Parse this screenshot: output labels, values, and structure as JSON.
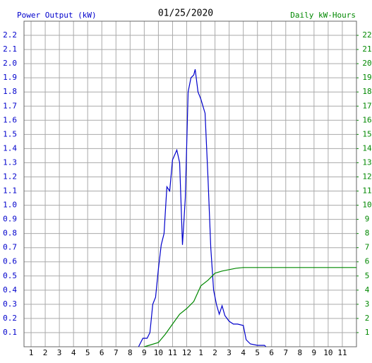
{
  "chart_data": {
    "type": "line",
    "title": "01/25/2020",
    "xlim": [
      0.5,
      24
    ],
    "xticks": [
      1,
      2,
      3,
      4,
      5,
      6,
      7,
      8,
      9,
      10,
      11,
      12,
      {
        "value": 13,
        "label": "1"
      },
      {
        "value": 14,
        "label": "2"
      },
      {
        "value": 15,
        "label": "3"
      },
      {
        "value": 16,
        "label": "4"
      },
      {
        "value": 17,
        "label": "5"
      },
      {
        "value": 18,
        "label": "6"
      },
      {
        "value": 19,
        "label": "7"
      },
      {
        "value": 20,
        "label": "8"
      },
      {
        "value": 21,
        "label": "9"
      },
      {
        "value": 22,
        "label": "10"
      },
      {
        "value": 23,
        "label": "11"
      }
    ],
    "ylim": [
      0,
      2.3
    ],
    "yticks": [
      0.1,
      0.2,
      0.3,
      0.4,
      0.5,
      0.6,
      0.7,
      0.8,
      0.9,
      {
        "value": 1,
        "label": "1.0"
      },
      1.1,
      1.2,
      1.3,
      1.4,
      1.5,
      1.6,
      1.7,
      1.8,
      1.9,
      {
        "value": 2,
        "label": "2.0"
      },
      2.1,
      2.2
    ],
    "y2lim": [
      0,
      23
    ],
    "y2ticks": [
      1,
      2,
      3,
      4,
      5,
      6,
      7,
      8,
      9,
      10,
      11,
      12,
      13,
      14,
      15,
      16,
      17,
      18,
      19,
      20,
      21,
      22
    ],
    "grid": true,
    "series": [
      {
        "name": "Power Output (kW)",
        "color": "#0000cc",
        "x": [
          8.6,
          8.9,
          9.2,
          9.4,
          9.6,
          9.8,
          10.0,
          10.2,
          10.4,
          10.6,
          10.8,
          11.0,
          11.3,
          11.5,
          11.7,
          11.9,
          12.1,
          12.3,
          12.5,
          12.6,
          12.8,
          13.0,
          13.3,
          13.5,
          13.7,
          13.9,
          14.1,
          14.3,
          14.5,
          14.7,
          15.0,
          15.3,
          15.6,
          16.0,
          16.2,
          16.5,
          17.0,
          17.5,
          17.6
        ],
        "values": [
          0,
          0.06,
          0.06,
          0.1,
          0.3,
          0.35,
          0.55,
          0.72,
          0.8,
          1.13,
          1.1,
          1.32,
          1.39,
          1.3,
          0.72,
          1.05,
          1.8,
          1.9,
          1.92,
          1.96,
          1.8,
          1.75,
          1.65,
          1.2,
          0.7,
          0.4,
          0.3,
          0.23,
          0.29,
          0.22,
          0.18,
          0.16,
          0.16,
          0.15,
          0.05,
          0.02,
          0.01,
          0.01,
          0
        ]
      },
      {
        "name": "Daily kW-Hours",
        "color": "#008800",
        "axis": "y2",
        "x": [
          9.0,
          10.0,
          10.5,
          11.0,
          11.5,
          12.0,
          12.5,
          13.0,
          13.5,
          14.0,
          14.5,
          15.0,
          15.5,
          16.0,
          24.0
        ],
        "values": [
          0,
          0.3,
          0.9,
          1.6,
          2.3,
          2.7,
          3.2,
          4.3,
          4.7,
          5.2,
          5.35,
          5.45,
          5.55,
          5.6,
          5.6
        ]
      }
    ]
  }
}
